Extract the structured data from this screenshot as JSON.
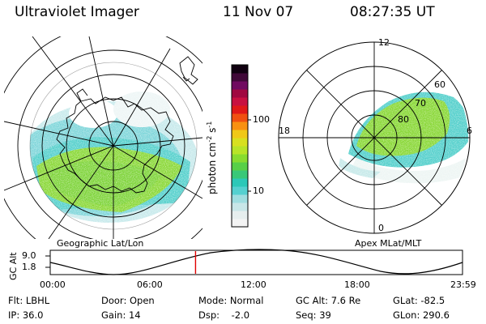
{
  "header": {
    "title": "Ultraviolet Imager",
    "date": "11 Nov 07",
    "time": "08:27:35 UT"
  },
  "colorbar": {
    "label": "photon cm",
    "label_exp1": "-2",
    "label_mid": "s",
    "label_exp2": "-1",
    "ticks": [
      "100",
      "10"
    ],
    "colors": [
      "#f4f4f4",
      "#e6eeee",
      "#c8e6e8",
      "#9fdde0",
      "#55d0d0",
      "#2cc8b8",
      "#38c878",
      "#58d048",
      "#88dc30",
      "#b8e428",
      "#d8e020",
      "#f0c818",
      "#f89010",
      "#f05010",
      "#e01818",
      "#c81040",
      "#a00840",
      "#700a60",
      "#400838",
      "#100010"
    ]
  },
  "left_map": {
    "caption": "Geographic Lat/Lon"
  },
  "right_map": {
    "caption": "Apex MLat/MLT",
    "lat_labels": [
      "60",
      "70",
      "80"
    ],
    "mlt_labels": {
      "top": "12",
      "left": "18",
      "right": "6",
      "bottom": "0"
    }
  },
  "timeline": {
    "ylabel": "GC Alt",
    "yticks": [
      "9.0",
      "1.8"
    ],
    "xticks": [
      "00:00",
      "06:00",
      "12:00",
      "18:00",
      "23:59"
    ],
    "marker_fraction": 0.3525
  },
  "info": {
    "row1": [
      "Flt: LBHL",
      "Door: Open",
      "Mode: Normal",
      "GC Alt: 7.6 Re",
      "GLat: -82.5"
    ],
    "row2": [
      "IP: 36.0",
      "Gain: 14",
      "Dsp:    -2.0",
      "Seq: 39",
      "GLon: 290.6"
    ]
  }
}
